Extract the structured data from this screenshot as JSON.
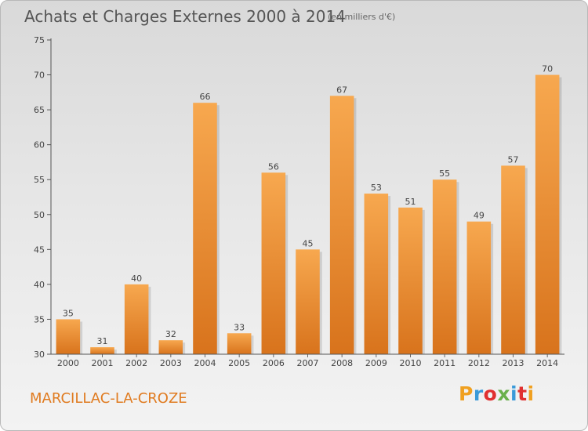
{
  "title": "Achats et Charges Externes 2000 à 2014",
  "subtitle": "(en milliers d'€)",
  "location": "MARCILLAC-LA-CROZE",
  "logo": {
    "text": "Proxiti",
    "colors": [
      "#f0a020",
      "#3a9ad9",
      "#e03030",
      "#6ab04c",
      "#3a9ad9",
      "#e03030",
      "#f0a020"
    ]
  },
  "colors": {
    "bar_light": "#f7a84f",
    "bar_dark": "#d8731c",
    "location": "#e07b20"
  },
  "chart_data": {
    "type": "bar",
    "title": "Achats et Charges Externes 2000 à 2014",
    "subtitle": "(en milliers d'€)",
    "categories": [
      "2000",
      "2001",
      "2002",
      "2003",
      "2004",
      "2005",
      "2006",
      "2007",
      "2008",
      "2009",
      "2010",
      "2011",
      "2012",
      "2013",
      "2014"
    ],
    "values": [
      35,
      31,
      40,
      32,
      66,
      33,
      56,
      45,
      67,
      53,
      51,
      55,
      49,
      57,
      70
    ],
    "ylim": [
      30,
      75
    ],
    "yticks": [
      30,
      35,
      40,
      45,
      50,
      55,
      60,
      65,
      70,
      75
    ],
    "grid": false,
    "data_labels": true
  }
}
